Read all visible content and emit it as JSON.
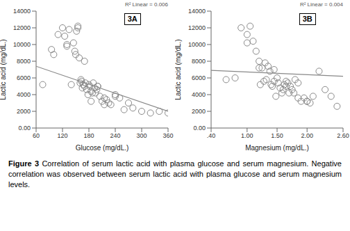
{
  "chart_data": [
    {
      "type": "scatter",
      "xlabel": "Glucose (mg/dL.)",
      "ylabel": "Lactic acid (mg/dL.)",
      "annotations": [
        "3A",
        "R² Linear = 0.006"
      ],
      "xlim": [
        60,
        360
      ],
      "ylim": [
        0,
        14000
      ],
      "xticks": [
        60,
        120,
        180,
        240,
        300,
        360
      ],
      "yticks": [
        {
          "value": 0,
          "label": "0.00"
        },
        2000,
        4000,
        6000,
        8000,
        10000,
        12000,
        14000
      ],
      "grid": false,
      "series": [
        {
          "type": "scatter",
          "marker": "circle",
          "color": "#888888",
          "x": [
            75,
            95,
            110,
            120,
            125,
            130,
            135,
            140,
            145,
            148,
            150,
            152,
            155,
            158,
            160,
            162,
            163,
            165,
            167,
            170,
            172,
            175,
            178,
            180,
            182,
            185,
            188,
            190,
            193,
            195,
            198,
            200,
            205,
            210,
            215,
            220,
            225,
            230,
            240,
            250,
            260,
            270,
            280,
            300,
            320,
            340,
            360,
            100,
            130,
            155,
            170,
            185,
            200,
            215,
            240
          ],
          "values": [
            5200,
            9400,
            11200,
            12000,
            11000,
            9800,
            11800,
            5200,
            10200,
            9200,
            8800,
            11600,
            12200,
            8400,
            5400,
            5800,
            5600,
            4800,
            5200,
            5000,
            5400,
            4600,
            4000,
            5200,
            5000,
            4400,
            4200,
            5400,
            4800,
            4200,
            4600,
            5000,
            3800,
            3200,
            3600,
            3400,
            3000,
            2800,
            4000,
            3600,
            2200,
            3000,
            2400,
            2000,
            1800,
            2000,
            1800,
            8800,
            10000,
            12000,
            8000,
            3200,
            5000,
            2800,
            3800
          ]
        },
        {
          "type": "line",
          "line_style": "solid",
          "color": "#888888",
          "x": [
            60,
            360
          ],
          "values": [
            7400,
            2000
          ]
        }
      ]
    },
    {
      "type": "scatter",
      "xlabel": "Magnesium (mg/dL.)",
      "ylabel": "Lactic acid (mg/dL.)",
      "annotations": [
        "3B",
        "R² Linear = 0.004"
      ],
      "xlim": [
        0.4,
        2.6
      ],
      "ylim": [
        0,
        14000
      ],
      "xticks": [
        {
          "value": 0.4,
          "label": ".40"
        },
        {
          "value": 1.0,
          "label": "1.00"
        },
        {
          "value": 1.5,
          "label": "1.50"
        },
        {
          "value": 2.0,
          "label": "2.00"
        },
        {
          "value": 2.6,
          "label": "2.60"
        }
      ],
      "yticks": [
        {
          "value": 0,
          "label": "0.00"
        },
        2000,
        4000,
        6000,
        8000,
        10000,
        12000,
        14000
      ],
      "grid": false,
      "series": [
        {
          "type": "scatter",
          "marker": "circle",
          "color": "#888888",
          "x": [
            0.65,
            0.8,
            0.9,
            1.0,
            1.05,
            1.1,
            1.15,
            1.2,
            1.22,
            1.25,
            1.28,
            1.3,
            1.32,
            1.35,
            1.38,
            1.4,
            1.42,
            1.45,
            1.48,
            1.5,
            1.52,
            1.55,
            1.58,
            1.6,
            1.62,
            1.65,
            1.68,
            1.7,
            1.72,
            1.75,
            1.78,
            1.8,
            1.85,
            1.9,
            1.95,
            2.0,
            2.05,
            2.1,
            2.2,
            2.3,
            2.4,
            2.5,
            1.0,
            1.2,
            1.45,
            1.65,
            1.85,
            2.0
          ],
          "values": [
            5800,
            6000,
            12000,
            11200,
            12200,
            10400,
            9200,
            8000,
            5200,
            7200,
            5600,
            7800,
            5800,
            7400,
            6800,
            5200,
            5000,
            5600,
            3800,
            6000,
            5400,
            4800,
            4200,
            4600,
            5200,
            5000,
            5400,
            4200,
            5000,
            4600,
            4200,
            5800,
            5400,
            3200,
            3600,
            3200,
            3000,
            3800,
            6800,
            4600,
            3800,
            2600,
            10200,
            7200,
            7000,
            5600,
            3600,
            3200
          ]
        },
        {
          "type": "line",
          "line_style": "solid",
          "color": "#888888",
          "x": [
            0.4,
            2.6
          ],
          "values": [
            6900,
            6200
          ]
        }
      ]
    }
  ],
  "caption": {
    "bold": "Figure 3",
    "text": " Correlation of serum lactic acid with plasma glucose and serum magnesium. Negative correlation was observed between serum lactic acid with plasma glucose and serum magnesium levels."
  }
}
